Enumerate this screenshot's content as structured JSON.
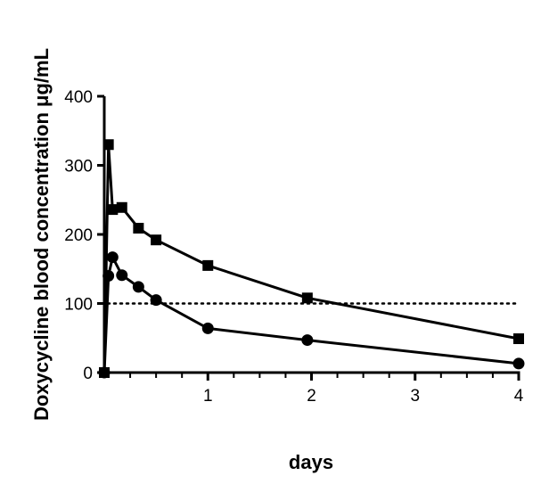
{
  "chart_data": {
    "type": "line",
    "title": "",
    "xlabel": "days",
    "ylabel": "Doxycycline blood concentration μg/mL",
    "xlim": [
      0,
      4
    ],
    "ylim": [
      0,
      400
    ],
    "xticks": [
      1,
      2,
      3,
      4
    ],
    "yticks": [
      0,
      100,
      200,
      300,
      400
    ],
    "x_minor_ticks": [
      0.25,
      0.5,
      0.75,
      1.25,
      1.5,
      1.75,
      2.25,
      2.5,
      2.75,
      3.25,
      3.5,
      3.75
    ],
    "grid": false,
    "legend": "none",
    "reference_line": {
      "y": 100,
      "style": "dotted"
    },
    "series": [
      {
        "name": "square-series",
        "marker": "square",
        "x": [
          0,
          0.04,
          0.08,
          0.17,
          0.33,
          0.5,
          1,
          1.96,
          4
        ],
        "y": [
          0,
          330,
          236,
          239,
          209,
          192,
          155,
          108,
          49
        ]
      },
      {
        "name": "circle-series",
        "marker": "circle",
        "x": [
          0,
          0.04,
          0.08,
          0.17,
          0.33,
          0.5,
          1,
          1.96,
          4
        ],
        "y": [
          0,
          140,
          167,
          141,
          124,
          105,
          64,
          47,
          13
        ]
      }
    ]
  }
}
